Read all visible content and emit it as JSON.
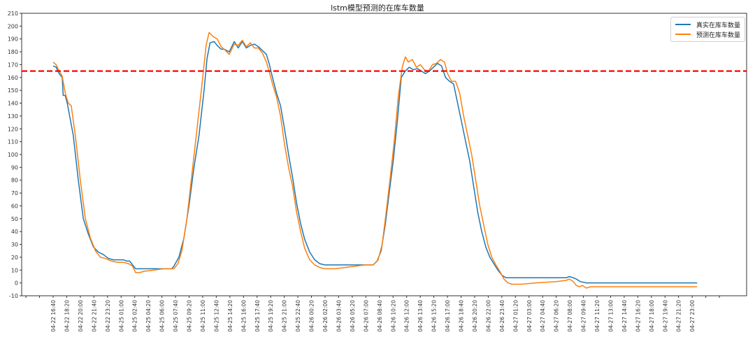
{
  "chart_data": {
    "type": "line",
    "title": "lstm模型预测的在库车数量",
    "xlabel": "",
    "ylabel": "",
    "ylim": [
      -10,
      210
    ],
    "yticks": [
      -10,
      0,
      10,
      20,
      30,
      40,
      50,
      60,
      70,
      80,
      90,
      100,
      110,
      120,
      130,
      140,
      150,
      160,
      170,
      180,
      190,
      200,
      210
    ],
    "xtick_labels": [
      "04-22 16:40",
      "04-22 18:20",
      "04-22 20:00",
      "04-22 21:40",
      "04-22 23:20",
      "04-25 01:00",
      "04-25 02:40",
      "04-25 04:20",
      "04-25 06:00",
      "04-25 07:40",
      "04-25 09:20",
      "04-25 11:00",
      "04-25 12:40",
      "04-25 14:20",
      "04-25 16:00",
      "04-25 17:40",
      "04-25 19:20",
      "04-25 21:00",
      "04-25 22:40",
      "04-26 00:20",
      "04-26 02:00",
      "04-26 03:40",
      "04-26 05:20",
      "04-26 07:00",
      "04-26 08:40",
      "04-26 10:20",
      "04-26 12:00",
      "04-26 13:40",
      "04-26 15:20",
      "04-26 17:00",
      "04-26 18:40",
      "04-26 20:20",
      "04-26 22:00",
      "04-26 23:40",
      "04-27 01:20",
      "04-27 03:00",
      "04-27 04:40",
      "04-27 06:20",
      "04-27 08:00",
      "04-27 09:40",
      "04-27 11:20",
      "04-27 13:00",
      "04-27 14:40",
      "04-27 16:20",
      "04-27 18:00",
      "04-27 19:40",
      "04-27 21:20",
      "04-27 23:00"
    ],
    "threshold": {
      "value": 165,
      "color": "#ff0000",
      "style": "dashed"
    },
    "legend_position": "upper right",
    "grid": false,
    "x_index_range": [
      0,
      47
    ],
    "series": [
      {
        "name": "真实在库车数量",
        "color": "#1f77b4",
        "points": [
          [
            0,
            169
          ],
          [
            0.3,
            168
          ],
          [
            0.6,
            163
          ],
          [
            0.9,
            160
          ],
          [
            1.0,
            146
          ],
          [
            1.2,
            146
          ],
          [
            1.4,
            140
          ],
          [
            2.0,
            115
          ],
          [
            2.5,
            80
          ],
          [
            3.0,
            50
          ],
          [
            3.5,
            38
          ],
          [
            4.0,
            28
          ],
          [
            4.5,
            24
          ],
          [
            5.0,
            22
          ],
          [
            5.5,
            19
          ],
          [
            6.0,
            18
          ],
          [
            6.5,
            18
          ],
          [
            7.0,
            18
          ],
          [
            7.3,
            17
          ],
          [
            7.6,
            17
          ],
          [
            7.8,
            15
          ],
          [
            8.2,
            11
          ],
          [
            9.0,
            11
          ],
          [
            10.0,
            11
          ],
          [
            11.0,
            11
          ],
          [
            11.8,
            11
          ],
          [
            12.0,
            13
          ],
          [
            12.5,
            20
          ],
          [
            13.0,
            35
          ],
          [
            13.5,
            60
          ],
          [
            14.0,
            90
          ],
          [
            14.5,
            115
          ],
          [
            15.0,
            150
          ],
          [
            15.3,
            175
          ],
          [
            15.6,
            187
          ],
          [
            16.0,
            188
          ],
          [
            16.3,
            185
          ],
          [
            16.7,
            182
          ],
          [
            17.0,
            182
          ],
          [
            17.5,
            180
          ],
          [
            18.0,
            188
          ],
          [
            18.4,
            183
          ],
          [
            18.8,
            188
          ],
          [
            19.2,
            183
          ],
          [
            19.6,
            185
          ],
          [
            20.0,
            186
          ],
          [
            20.4,
            184
          ],
          [
            20.8,
            181
          ],
          [
            21.2,
            178
          ],
          [
            21.5,
            170
          ],
          [
            21.8,
            160
          ],
          [
            22.2,
            148
          ],
          [
            22.6,
            138
          ],
          [
            23.0,
            120
          ],
          [
            23.4,
            100
          ],
          [
            23.8,
            82
          ],
          [
            24.2,
            62
          ],
          [
            24.6,
            46
          ],
          [
            25.0,
            34
          ],
          [
            25.5,
            24
          ],
          [
            26.0,
            18
          ],
          [
            26.5,
            15
          ],
          [
            27.0,
            14
          ],
          [
            28.0,
            14
          ],
          [
            29.0,
            14
          ],
          [
            30.0,
            14
          ],
          [
            31.0,
            14
          ],
          [
            31.8,
            14
          ],
          [
            32.2,
            17
          ],
          [
            32.6,
            25
          ],
          [
            33.0,
            45
          ],
          [
            33.4,
            70
          ],
          [
            33.8,
            95
          ],
          [
            34.2,
            125
          ],
          [
            34.6,
            160
          ],
          [
            35.0,
            165
          ],
          [
            35.4,
            168
          ],
          [
            35.8,
            166
          ],
          [
            36.2,
            167
          ],
          [
            36.6,
            165
          ],
          [
            37.0,
            163
          ],
          [
            37.4,
            165
          ],
          [
            37.8,
            168
          ],
          [
            38.2,
            171
          ],
          [
            38.6,
            169
          ],
          [
            39.0,
            160
          ],
          [
            39.4,
            157
          ],
          [
            39.8,
            155
          ],
          [
            40.2,
            140
          ],
          [
            40.6,
            125
          ],
          [
            41.0,
            110
          ],
          [
            41.4,
            95
          ],
          [
            41.8,
            75
          ],
          [
            42.2,
            55
          ],
          [
            42.6,
            40
          ],
          [
            43.0,
            28
          ],
          [
            43.4,
            20
          ],
          [
            43.8,
            15
          ],
          [
            44.2,
            10
          ],
          [
            44.6,
            6
          ],
          [
            45.0,
            4
          ],
          [
            46.0,
            4
          ],
          [
            47.0,
            4
          ],
          [
            48.0,
            4
          ],
          [
            49.0,
            4
          ],
          [
            50.0,
            4
          ],
          [
            51.0,
            4
          ],
          [
            51.3,
            5
          ],
          [
            51.7,
            4
          ],
          [
            52.0,
            3
          ],
          [
            52.4,
            1
          ],
          [
            53.0,
            0
          ],
          [
            55.0,
            0
          ],
          [
            58.0,
            0
          ],
          [
            60.0,
            0
          ],
          [
            62.0,
            0
          ],
          [
            64.0,
            0
          ]
        ]
      },
      {
        "name": "预测在库车数量",
        "color": "#ff7f0e",
        "points": [
          [
            0,
            172
          ],
          [
            0.3,
            170
          ],
          [
            0.6,
            165
          ],
          [
            0.9,
            161
          ],
          [
            1.2,
            148
          ],
          [
            1.5,
            140
          ],
          [
            1.8,
            138
          ],
          [
            2.2,
            115
          ],
          [
            2.7,
            80
          ],
          [
            3.2,
            50
          ],
          [
            3.7,
            35
          ],
          [
            4.2,
            25
          ],
          [
            4.7,
            20
          ],
          [
            5.2,
            19
          ],
          [
            5.8,
            17
          ],
          [
            6.4,
            16
          ],
          [
            7.0,
            16
          ],
          [
            7.5,
            15
          ],
          [
            7.9,
            13
          ],
          [
            8.2,
            8
          ],
          [
            8.6,
            8
          ],
          [
            9.0,
            9
          ],
          [
            10.0,
            10
          ],
          [
            11.0,
            11
          ],
          [
            12.0,
            11
          ],
          [
            12.4,
            15
          ],
          [
            12.8,
            25
          ],
          [
            13.3,
            50
          ],
          [
            13.8,
            85
          ],
          [
            14.3,
            120
          ],
          [
            14.8,
            155
          ],
          [
            15.2,
            185
          ],
          [
            15.5,
            195
          ],
          [
            15.9,
            192
          ],
          [
            16.3,
            190
          ],
          [
            16.7,
            184
          ],
          [
            17.0,
            182
          ],
          [
            17.5,
            178
          ],
          [
            18.0,
            186
          ],
          [
            18.4,
            185
          ],
          [
            18.8,
            189
          ],
          [
            19.2,
            184
          ],
          [
            19.6,
            187
          ],
          [
            20.0,
            183
          ],
          [
            20.4,
            183
          ],
          [
            20.8,
            179
          ],
          [
            21.2,
            172
          ],
          [
            21.5,
            164
          ],
          [
            21.8,
            155
          ],
          [
            22.2,
            145
          ],
          [
            22.6,
            130
          ],
          [
            23.0,
            108
          ],
          [
            23.4,
            90
          ],
          [
            23.8,
            75
          ],
          [
            24.2,
            55
          ],
          [
            24.6,
            40
          ],
          [
            25.0,
            27
          ],
          [
            25.5,
            18
          ],
          [
            26.0,
            14
          ],
          [
            26.5,
            12
          ],
          [
            27.0,
            11
          ],
          [
            28.0,
            11
          ],
          [
            29.0,
            12
          ],
          [
            30.0,
            13
          ],
          [
            31.0,
            14
          ],
          [
            31.8,
            14
          ],
          [
            32.3,
            18
          ],
          [
            32.7,
            30
          ],
          [
            33.1,
            55
          ],
          [
            33.5,
            82
          ],
          [
            33.9,
            110
          ],
          [
            34.3,
            145
          ],
          [
            34.7,
            168
          ],
          [
            35.0,
            176
          ],
          [
            35.3,
            172
          ],
          [
            35.7,
            174
          ],
          [
            36.1,
            168
          ],
          [
            36.5,
            170
          ],
          [
            36.9,
            166
          ],
          [
            37.3,
            165
          ],
          [
            37.7,
            170
          ],
          [
            38.1,
            171
          ],
          [
            38.5,
            174
          ],
          [
            38.9,
            172
          ],
          [
            39.2,
            163
          ],
          [
            39.6,
            157
          ],
          [
            40.0,
            157
          ],
          [
            40.4,
            148
          ],
          [
            40.8,
            130
          ],
          [
            41.2,
            115
          ],
          [
            41.6,
            100
          ],
          [
            42.0,
            80
          ],
          [
            42.4,
            60
          ],
          [
            42.8,
            45
          ],
          [
            43.2,
            30
          ],
          [
            43.6,
            20
          ],
          [
            44.0,
            14
          ],
          [
            44.4,
            9
          ],
          [
            44.8,
            3
          ],
          [
            45.2,
            0
          ],
          [
            45.6,
            -1
          ],
          [
            46.5,
            -1
          ],
          [
            48.0,
            0
          ],
          [
            50.0,
            1
          ],
          [
            51.0,
            2
          ],
          [
            51.3,
            3
          ],
          [
            51.7,
            1
          ],
          [
            52.0,
            -2
          ],
          [
            52.3,
            -3
          ],
          [
            52.6,
            -2
          ],
          [
            53.0,
            -4
          ],
          [
            53.4,
            -3
          ],
          [
            54.0,
            -3
          ],
          [
            56.0,
            -3
          ],
          [
            58.0,
            -3
          ],
          [
            60.0,
            -3
          ],
          [
            62.0,
            -3
          ],
          [
            64.0,
            -3
          ]
        ]
      }
    ]
  },
  "legend": {
    "items": [
      {
        "label": "真实在库车数量",
        "color": "#1f77b4"
      },
      {
        "label": "预测在库车数量",
        "color": "#ff7f0e"
      }
    ]
  }
}
